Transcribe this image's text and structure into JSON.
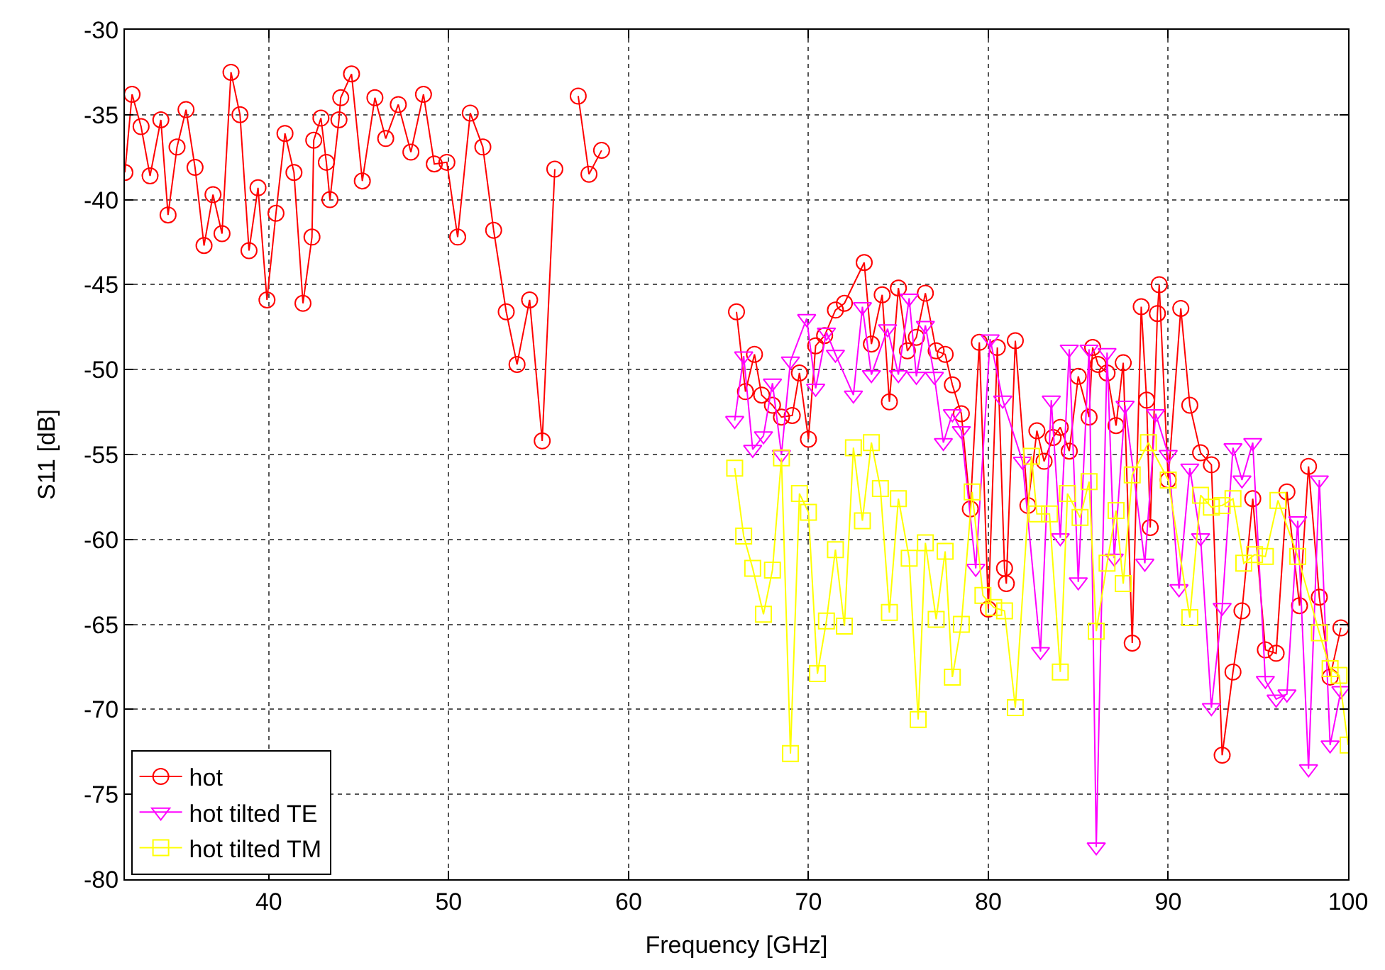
{
  "chart_data": {
    "type": "line",
    "xlabel": "Frequency [GHz]",
    "ylabel": "S11 [dB]",
    "xlim": [
      32,
      100
    ],
    "ylim": [
      -80,
      -30
    ],
    "xticks": [
      40,
      50,
      60,
      70,
      80,
      90,
      100
    ],
    "yticks": [
      -80,
      -75,
      -70,
      -65,
      -60,
      -55,
      -50,
      -45,
      -40,
      -35,
      -30
    ],
    "grid": true,
    "legend": "bottom left",
    "line_style": "solid",
    "series": [
      {
        "name": "hot",
        "color": "#ff0000",
        "marker": "circle",
        "x": [
          32.0,
          32.4,
          32.9,
          33.4,
          34.0,
          34.4,
          34.9,
          35.4,
          35.9,
          36.4,
          36.9,
          37.4,
          37.9,
          38.4,
          38.9,
          39.4,
          39.9,
          40.4,
          40.9,
          41.4,
          41.9,
          42.4,
          42.5,
          42.9,
          43.2,
          43.4,
          43.9,
          44.0,
          44.6,
          45.2,
          45.9,
          46.5,
          47.2,
          47.9,
          48.6,
          49.2,
          49.9,
          50.5,
          51.2,
          51.9,
          52.5,
          53.2,
          53.8,
          54.5,
          55.2,
          55.9,
          56.5,
          57.2,
          57.8,
          58.5,
          62.0,
          66.0,
          66.5,
          67.0,
          67.4,
          68.0,
          68.5,
          69.1,
          69.5,
          70.0,
          70.4,
          70.9,
          71.5,
          72.0,
          73.1,
          73.5,
          74.1,
          74.5,
          75.0,
          75.5,
          76.0,
          76.5,
          77.1,
          77.6,
          78.0,
          78.5,
          79.0,
          79.5,
          80.0,
          80.5,
          80.9,
          81.0,
          81.5,
          82.2,
          82.7,
          83.1,
          83.6,
          84.0,
          84.5,
          85.0,
          85.6,
          85.8,
          86.1,
          86.6,
          87.1,
          87.5,
          88.0,
          88.5,
          88.8,
          89.0,
          89.4,
          89.5,
          90.0,
          90.7,
          91.2,
          91.8,
          92.4,
          93.0,
          93.6,
          94.1,
          94.7,
          95.4,
          96.0,
          96.6,
          97.3,
          97.8,
          98.4,
          99.0,
          99.6
        ],
        "values": [
          -38.4,
          -33.8,
          -35.7,
          -38.6,
          -35.3,
          -40.9,
          -36.9,
          -34.7,
          -38.1,
          -42.7,
          -39.7,
          -42.0,
          -32.5,
          -35.0,
          -43.0,
          -39.3,
          -45.9,
          -40.8,
          -36.1,
          -38.4,
          -46.1,
          -42.2,
          -36.5,
          -35.2,
          -37.8,
          -40.0,
          -35.3,
          -34.0,
          -32.6,
          -38.9,
          -34.0,
          -36.4,
          -34.4,
          -37.2,
          -33.8,
          -37.9,
          -37.8,
          -42.2,
          -34.9,
          -36.9,
          -41.8,
          -46.6,
          -49.7,
          -45.9,
          -54.2,
          -38.2,
          null,
          -33.9,
          -38.5,
          -37.1,
          null,
          -46.6,
          -51.3,
          -49.1,
          -51.5,
          -52.1,
          -52.8,
          -52.7,
          -50.2,
          -54.1,
          -48.6,
          -48.0,
          -46.5,
          -46.1,
          -43.7,
          -48.5,
          -45.6,
          -51.9,
          -45.2,
          -48.9,
          -48.1,
          -45.5,
          -48.9,
          -49.1,
          -50.9,
          -52.6,
          -58.2,
          -48.4,
          -64.1,
          -48.7,
          -61.7,
          -62.6,
          -48.3,
          -58.0,
          -53.6,
          -55.4,
          -54.0,
          -53.4,
          -54.8,
          -50.4,
          -52.8,
          -48.7,
          -49.7,
          -50.2,
          -53.3,
          -49.6,
          -66.1,
          -46.3,
          -51.8,
          -59.3,
          -46.7,
          -45.0,
          -56.5,
          -46.4,
          -52.1,
          -54.9,
          -55.6,
          -72.7,
          -67.8,
          -64.2,
          -57.6,
          -66.5,
          -66.7,
          -57.2,
          -63.9,
          -55.7,
          -63.4,
          -68.1,
          -65.2
        ]
      },
      {
        "name": "hot tilted TE",
        "color": "#ff00ff",
        "marker": "triangle",
        "x": [
          65.9,
          66.4,
          66.9,
          67.5,
          68.0,
          68.5,
          69.0,
          69.9,
          70.4,
          71.0,
          71.5,
          72.5,
          73.0,
          73.5,
          74.4,
          75.0,
          75.6,
          76.0,
          76.5,
          77.0,
          77.5,
          78.0,
          78.5,
          79.3,
          80.1,
          80.8,
          81.9,
          82.9,
          83.5,
          84.0,
          84.5,
          85.0,
          85.6,
          86.0,
          86.6,
          87.0,
          87.6,
          88.7,
          89.3,
          90.0,
          90.6,
          91.2,
          91.8,
          92.4,
          93.0,
          93.6,
          94.1,
          94.7,
          95.4,
          96.0,
          96.6,
          97.2,
          97.8,
          98.4,
          99.0,
          99.6
        ],
        "values": [
          -53.0,
          -49.2,
          -54.7,
          -53.9,
          -50.8,
          -55.0,
          -49.5,
          -47.0,
          -51.1,
          -47.8,
          -49.1,
          -51.5,
          -46.3,
          -50.3,
          -47.6,
          -50.3,
          -45.8,
          -50.4,
          -47.4,
          -50.4,
          -54.3,
          -52.6,
          -53.6,
          -61.7,
          -48.2,
          -51.8,
          -55.4,
          -66.6,
          -51.8,
          -59.9,
          -48.8,
          -62.5,
          -48.8,
          -78.1,
          -49.0,
          -61.1,
          -52.1,
          -61.4,
          -52.6,
          -55.0,
          -62.9,
          -55.8,
          -59.9,
          -69.9,
          -64.0,
          -54.6,
          -56.5,
          -54.3,
          -68.3,
          -69.4,
          -69.1,
          -58.9,
          -73.5,
          -56.5,
          -72.1,
          -68.9
        ]
      },
      {
        "name": "hot tilted TM",
        "color": "#ffff00",
        "marker": "square",
        "x": [
          65.9,
          66.4,
          66.9,
          67.5,
          68.0,
          68.5,
          69.0,
          69.5,
          70.0,
          70.5,
          71.0,
          71.5,
          72.0,
          72.5,
          73.0,
          73.5,
          74.0,
          74.5,
          75.0,
          75.6,
          76.1,
          76.5,
          77.1,
          77.6,
          78.0,
          78.5,
          79.1,
          79.7,
          80.3,
          80.9,
          81.5,
          82.4,
          82.7,
          83.4,
          84.0,
          84.4,
          85.1,
          85.6,
          86.0,
          86.6,
          87.1,
          87.5,
          88.0,
          88.9,
          90.0,
          91.2,
          91.8,
          92.4,
          93.0,
          93.6,
          94.2,
          94.8,
          95.4,
          96.1,
          97.2,
          98.4,
          99.0,
          99.5,
          100.0
        ],
        "values": [
          -55.8,
          -59.8,
          -61.7,
          -64.4,
          -61.8,
          -55.2,
          -72.6,
          -57.3,
          -58.4,
          -67.9,
          -64.8,
          -60.6,
          -65.1,
          -54.6,
          -58.9,
          -54.3,
          -57.0,
          -64.3,
          -57.6,
          -61.1,
          -70.6,
          -60.2,
          -64.7,
          -60.7,
          -68.1,
          -65.0,
          -57.2,
          -63.3,
          -64.0,
          -64.2,
          -69.9,
          -55.1,
          -58.5,
          -58.5,
          -67.8,
          -57.3,
          -58.7,
          -56.6,
          -65.4,
          -61.4,
          -58.3,
          -62.6,
          -56.2,
          -54.3,
          -56.5,
          -64.6,
          -57.4,
          -58.1,
          -58.0,
          -57.6,
          -61.4,
          -60.9,
          -61.0,
          -57.7,
          -61.0,
          -65.5,
          -67.6,
          -68.0,
          -72.1
        ]
      }
    ]
  }
}
